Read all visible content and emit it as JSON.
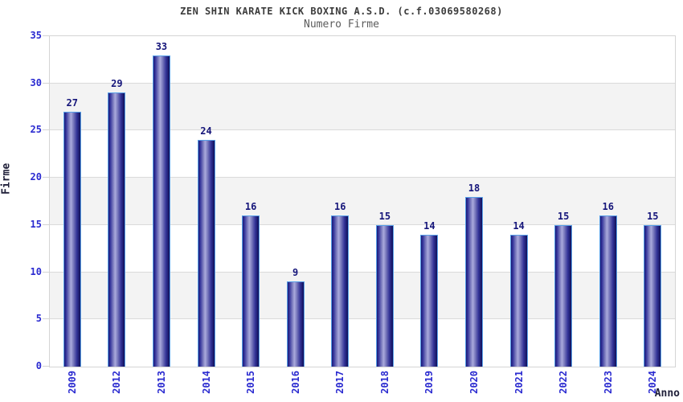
{
  "header": {
    "title": "ZEN SHIN KARATE KICK BOXING A.S.D. (c.f.03069580268)",
    "subtitle": "Numero Firme"
  },
  "chart_data": {
    "type": "bar",
    "title": "ZEN SHIN KARATE KICK BOXING A.S.D. (c.f.03069580268)",
    "subtitle": "Numero Firme",
    "xlabel": "Anno",
    "ylabel": "Firme",
    "categories": [
      "2009",
      "2012",
      "2013",
      "2014",
      "2015",
      "2016",
      "2017",
      "2018",
      "2019",
      "2020",
      "2021",
      "2022",
      "2023",
      "2024"
    ],
    "values": [
      27,
      29,
      33,
      24,
      16,
      9,
      16,
      15,
      14,
      18,
      14,
      15,
      16,
      15
    ],
    "ylim": [
      0,
      35
    ],
    "yticks": [
      0,
      5,
      10,
      15,
      20,
      25,
      30,
      35
    ],
    "grid": true,
    "legend": false,
    "banded_background": true,
    "colors": {
      "bar_dark": "#1b1b74",
      "bar_highlight": "#aaaadd",
      "bar_border": "#58a0e8",
      "tick_label_blue": "#2a2ad0",
      "value_label_navy": "#15157a",
      "axis_title": "#20203a",
      "band_gray": "#f3f3f3",
      "gridline": "#dadada",
      "title_gray": "#3c3c3c"
    }
  }
}
